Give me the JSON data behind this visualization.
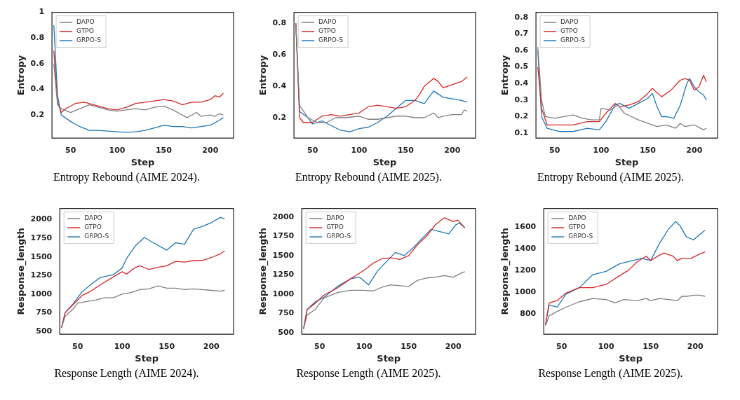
{
  "chart_data": [
    {
      "type": "line",
      "annotations": [
        "Entropy Rebound (AIME 2024)."
      ],
      "xlabel": "Step",
      "ylabel": "Entropy",
      "xlim": [
        30,
        225
      ],
      "xticks": [
        50,
        100,
        150,
        200
      ],
      "ylim": [
        0.02,
        1.0
      ],
      "yticks": [
        0.2,
        0.4,
        0.6,
        0.8,
        1.0
      ],
      "grid": false,
      "legend": "top left",
      "marker": "none",
      "series": [
        {
          "name": "DAPO",
          "color": "#7f7f7f",
          "x": [
            32,
            36,
            40,
            50,
            60,
            70,
            80,
            90,
            100,
            110,
            120,
            130,
            140,
            150,
            160,
            170,
            175,
            180,
            185,
            190,
            200,
            205,
            210,
            214
          ],
          "values": [
            0.6,
            0.28,
            0.25,
            0.22,
            0.25,
            0.28,
            0.26,
            0.24,
            0.23,
            0.24,
            0.25,
            0.24,
            0.26,
            0.27,
            0.24,
            0.2,
            0.18,
            0.2,
            0.22,
            0.19,
            0.2,
            0.19,
            0.21,
            0.2
          ]
        },
        {
          "name": "GTPO",
          "color": "#d62728",
          "x": [
            32,
            36,
            40,
            45,
            55,
            65,
            75,
            90,
            100,
            110,
            120,
            130,
            140,
            150,
            160,
            170,
            180,
            190,
            200,
            205,
            210,
            214
          ],
          "values": [
            0.7,
            0.3,
            0.22,
            0.25,
            0.29,
            0.3,
            0.28,
            0.25,
            0.24,
            0.26,
            0.29,
            0.3,
            0.31,
            0.32,
            0.31,
            0.28,
            0.3,
            0.3,
            0.32,
            0.35,
            0.34,
            0.37
          ]
        },
        {
          "name": "GRPO-S",
          "color": "#1f77b4",
          "x": [
            32,
            36,
            40,
            50,
            60,
            70,
            80,
            90,
            100,
            110,
            120,
            130,
            140,
            150,
            160,
            170,
            180,
            190,
            200,
            210,
            214
          ],
          "values": [
            0.9,
            0.35,
            0.2,
            0.15,
            0.11,
            0.08,
            0.08,
            0.075,
            0.07,
            0.065,
            0.07,
            0.08,
            0.1,
            0.12,
            0.11,
            0.11,
            0.1,
            0.11,
            0.12,
            0.16,
            0.18
          ]
        }
      ]
    },
    {
      "type": "line",
      "annotations": [
        "Entropy Rebound (AIME 2025)."
      ],
      "xlabel": "Step",
      "ylabel": "Entropy",
      "xlim": [
        30,
        225
      ],
      "xticks": [
        50,
        100,
        150,
        200
      ],
      "ylim": [
        0.07,
        0.87
      ],
      "yticks": [
        0.2,
        0.4,
        0.6,
        0.8
      ],
      "grid": false,
      "legend": "top left",
      "marker": "none",
      "series": [
        {
          "name": "DAPO",
          "color": "#7f7f7f",
          "x": [
            32,
            36,
            45,
            55,
            65,
            75,
            85,
            100,
            110,
            120,
            130,
            140,
            150,
            160,
            170,
            180,
            185,
            190,
            200,
            210,
            213,
            216
          ],
          "values": [
            0.8,
            0.28,
            0.2,
            0.17,
            0.17,
            0.2,
            0.2,
            0.21,
            0.19,
            0.19,
            0.2,
            0.21,
            0.21,
            0.2,
            0.2,
            0.23,
            0.2,
            0.21,
            0.22,
            0.22,
            0.25,
            0.24
          ]
        },
        {
          "name": "GTPO",
          "color": "#d62728",
          "x": [
            32,
            36,
            40,
            50,
            60,
            70,
            80,
            90,
            100,
            110,
            120,
            130,
            140,
            150,
            160,
            165,
            170,
            180,
            185,
            190,
            200,
            205,
            210,
            216
          ],
          "values": [
            0.8,
            0.2,
            0.17,
            0.17,
            0.21,
            0.22,
            0.21,
            0.22,
            0.23,
            0.27,
            0.28,
            0.27,
            0.26,
            0.27,
            0.31,
            0.35,
            0.4,
            0.45,
            0.43,
            0.39,
            0.41,
            0.42,
            0.43,
            0.46
          ]
        },
        {
          "name": "GRPO-S",
          "color": "#1f77b4",
          "x": [
            32,
            36,
            45,
            50,
            60,
            70,
            80,
            90,
            100,
            110,
            120,
            130,
            140,
            150,
            160,
            170,
            175,
            180,
            185,
            190,
            200,
            210,
            216
          ],
          "values": [
            0.8,
            0.24,
            0.2,
            0.16,
            0.18,
            0.15,
            0.12,
            0.11,
            0.13,
            0.14,
            0.17,
            0.21,
            0.26,
            0.31,
            0.31,
            0.29,
            0.33,
            0.37,
            0.35,
            0.33,
            0.32,
            0.31,
            0.3
          ]
        }
      ]
    },
    {
      "type": "line",
      "annotations": [
        "Entropy Rebound (AIME 2025)."
      ],
      "xlabel": "Step",
      "ylabel": "Entropy",
      "xlim": [
        30,
        225
      ],
      "xticks": [
        50,
        100,
        150,
        200
      ],
      "ylim": [
        0.07,
        0.83
      ],
      "yticks": [
        0.1,
        0.2,
        0.3,
        0.4,
        0.5,
        0.6,
        0.7,
        0.8
      ],
      "grid": false,
      "legend": "top left",
      "marker": "none",
      "series": [
        {
          "name": "DAPO",
          "color": "#7f7f7f",
          "x": [
            32,
            36,
            40,
            50,
            60,
            70,
            80,
            90,
            98,
            100,
            110,
            118,
            125,
            140,
            150,
            160,
            170,
            180,
            185,
            190,
            200,
            210,
            213
          ],
          "values": [
            0.62,
            0.3,
            0.2,
            0.19,
            0.2,
            0.21,
            0.19,
            0.18,
            0.18,
            0.25,
            0.24,
            0.27,
            0.22,
            0.18,
            0.16,
            0.14,
            0.15,
            0.13,
            0.16,
            0.14,
            0.15,
            0.12,
            0.13
          ]
        },
        {
          "name": "GTPO",
          "color": "#d62728",
          "x": [
            32,
            36,
            42,
            55,
            70,
            85,
            98,
            105,
            115,
            120,
            130,
            140,
            150,
            155,
            165,
            175,
            185,
            190,
            195,
            200,
            205,
            210,
            213
          ],
          "values": [
            0.5,
            0.25,
            0.15,
            0.15,
            0.15,
            0.17,
            0.17,
            0.22,
            0.28,
            0.26,
            0.27,
            0.29,
            0.34,
            0.37,
            0.32,
            0.36,
            0.42,
            0.43,
            0.42,
            0.36,
            0.38,
            0.45,
            0.41
          ]
        },
        {
          "name": "GRPO-S",
          "color": "#1f77b4",
          "x": [
            32,
            36,
            42,
            55,
            70,
            85,
            98,
            105,
            115,
            120,
            130,
            140,
            150,
            155,
            160,
            165,
            170,
            178,
            185,
            192,
            195,
            200,
            205,
            210,
            213
          ],
          "values": [
            0.6,
            0.2,
            0.13,
            0.11,
            0.11,
            0.13,
            0.12,
            0.17,
            0.27,
            0.28,
            0.25,
            0.28,
            0.31,
            0.34,
            0.26,
            0.2,
            0.2,
            0.19,
            0.27,
            0.4,
            0.43,
            0.38,
            0.35,
            0.33,
            0.3
          ]
        }
      ]
    },
    {
      "type": "line",
      "annotations": [
        "Response Length (AIME 2024)."
      ],
      "xlabel": "Step",
      "ylabel": "Response_length",
      "xlim": [
        30,
        225
      ],
      "xticks": [
        50,
        100,
        150,
        200
      ],
      "ylim": [
        460,
        2150
      ],
      "yticks": [
        500,
        750,
        1000,
        1250,
        1500,
        1750,
        2000
      ],
      "grid": false,
      "legend": "top left",
      "marker": "none",
      "series": [
        {
          "name": "DAPO",
          "color": "#7f7f7f",
          "x": [
            32,
            36,
            45,
            50,
            60,
            70,
            80,
            90,
            100,
            110,
            120,
            130,
            140,
            150,
            160,
            170,
            180,
            190,
            200,
            210,
            215
          ],
          "values": [
            550,
            700,
            800,
            880,
            900,
            920,
            950,
            950,
            1000,
            1020,
            1060,
            1070,
            1110,
            1080,
            1080,
            1060,
            1070,
            1060,
            1050,
            1040,
            1050
          ]
        },
        {
          "name": "GTPO",
          "color": "#d62728",
          "x": [
            32,
            36,
            45,
            55,
            65,
            75,
            90,
            100,
            105,
            115,
            120,
            130,
            140,
            150,
            160,
            170,
            180,
            190,
            200,
            210,
            215
          ],
          "values": [
            550,
            750,
            860,
            980,
            1040,
            1120,
            1230,
            1300,
            1270,
            1360,
            1380,
            1330,
            1360,
            1380,
            1440,
            1430,
            1450,
            1450,
            1490,
            1540,
            1580
          ]
        },
        {
          "name": "GRPO-S",
          "color": "#1f77b4",
          "x": [
            32,
            36,
            45,
            55,
            65,
            75,
            90,
            100,
            105,
            115,
            125,
            135,
            150,
            160,
            170,
            180,
            190,
            200,
            210,
            215
          ],
          "values": [
            550,
            750,
            870,
            1030,
            1130,
            1220,
            1260,
            1350,
            1480,
            1650,
            1760,
            1690,
            1590,
            1690,
            1670,
            1870,
            1910,
            1960,
            2030,
            2010
          ]
        }
      ]
    },
    {
      "type": "line",
      "annotations": [
        "Response Length (AIME 2025)."
      ],
      "xlabel": "Step",
      "ylabel": "Response_length",
      "xlim": [
        30,
        225
      ],
      "xticks": [
        50,
        100,
        150,
        200
      ],
      "ylim": [
        480,
        2110
      ],
      "yticks": [
        500,
        750,
        1000,
        1250,
        1500,
        1750,
        2000
      ],
      "grid": false,
      "legend": "top left",
      "marker": "none",
      "series": [
        {
          "name": "DAPO",
          "color": "#7f7f7f",
          "x": [
            32,
            36,
            45,
            55,
            70,
            85,
            100,
            110,
            120,
            130,
            140,
            150,
            160,
            170,
            180,
            190,
            200,
            210,
            213
          ],
          "values": [
            550,
            730,
            800,
            950,
            1020,
            1050,
            1050,
            1040,
            1090,
            1120,
            1110,
            1100,
            1180,
            1210,
            1220,
            1240,
            1220,
            1280,
            1290
          ]
        },
        {
          "name": "GTPO",
          "color": "#d62728",
          "x": [
            32,
            36,
            45,
            55,
            70,
            85,
            100,
            110,
            120,
            130,
            140,
            150,
            160,
            170,
            180,
            190,
            200,
            205,
            213
          ],
          "values": [
            550,
            800,
            880,
            990,
            1080,
            1200,
            1310,
            1400,
            1460,
            1470,
            1450,
            1500,
            1640,
            1750,
            1900,
            1990,
            1940,
            1960,
            1860
          ]
        },
        {
          "name": "GRPO-S",
          "color": "#1f77b4",
          "x": [
            32,
            36,
            45,
            55,
            70,
            85,
            95,
            105,
            115,
            125,
            135,
            145,
            155,
            165,
            175,
            185,
            195,
            203,
            207,
            213
          ],
          "values": [
            550,
            800,
            900,
            960,
            1100,
            1200,
            1220,
            1120,
            1300,
            1420,
            1540,
            1500,
            1600,
            1720,
            1840,
            1810,
            1780,
            1900,
            1920,
            1860
          ]
        }
      ]
    },
    {
      "type": "line",
      "annotations": [
        "Response Length (AIME 2025)."
      ],
      "xlabel": "Step",
      "ylabel": "Response_length",
      "xlim": [
        30,
        225
      ],
      "xticks": [
        50,
        100,
        150,
        200
      ],
      "ylim": [
        610,
        1770
      ],
      "yticks": [
        800,
        1000,
        1200,
        1400,
        1600
      ],
      "grid": false,
      "legend": "top left",
      "marker": "none",
      "series": [
        {
          "name": "DAPO",
          "color": "#7f7f7f",
          "x": [
            32,
            36,
            45,
            55,
            70,
            85,
            100,
            110,
            120,
            135,
            145,
            150,
            160,
            170,
            180,
            185,
            190,
            200,
            205,
            211
          ],
          "values": [
            690,
            780,
            820,
            860,
            910,
            940,
            930,
            900,
            930,
            920,
            940,
            920,
            940,
            930,
            920,
            960,
            960,
            970,
            970,
            960
          ]
        },
        {
          "name": "GTPO",
          "color": "#d62728",
          "x": [
            32,
            36,
            45,
            55,
            70,
            85,
            100,
            115,
            125,
            135,
            145,
            150,
            160,
            165,
            175,
            180,
            185,
            195,
            205,
            211
          ],
          "values": [
            700,
            900,
            920,
            990,
            1040,
            1040,
            1070,
            1150,
            1200,
            1280,
            1330,
            1290,
            1340,
            1360,
            1330,
            1290,
            1310,
            1310,
            1350,
            1370
          ]
        },
        {
          "name": "GRPO-S",
          "color": "#1f77b4",
          "x": [
            32,
            36,
            45,
            55,
            70,
            85,
            100,
            115,
            125,
            140,
            150,
            160,
            170,
            178,
            183,
            190,
            198,
            205,
            211
          ],
          "values": [
            700,
            880,
            860,
            980,
            1040,
            1160,
            1190,
            1260,
            1280,
            1310,
            1290,
            1450,
            1580,
            1650,
            1610,
            1510,
            1480,
            1530,
            1570
          ]
        }
      ]
    }
  ]
}
